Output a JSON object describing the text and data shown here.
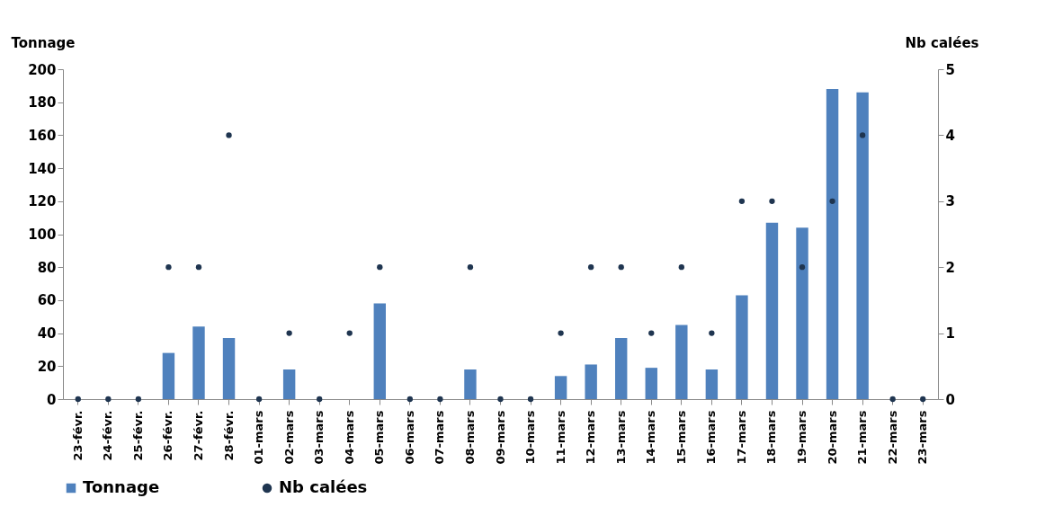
{
  "chart_data": {
    "type": "bar",
    "ylabel": "Tonnage",
    "y2label": "Nb calées",
    "categories": [
      "23-févr.",
      "24-févr.",
      "25-févr.",
      "26-févr.",
      "27-févr.",
      "28-févr.",
      "01-mars",
      "02-mars",
      "03-mars",
      "04-mars",
      "05-mars",
      "06-mars",
      "07-mars",
      "08-mars",
      "09-mars",
      "10-mars",
      "11-mars",
      "12-mars",
      "13-mars",
      "14-mars",
      "15-mars",
      "16-mars",
      "17-mars",
      "18-mars",
      "19-mars",
      "20-mars",
      "21-mars",
      "22-mars",
      "23-mars"
    ],
    "series": [
      {
        "name": "Tonnage",
        "color": "#4f81bd",
        "values": [
          0,
          0,
          0,
          28,
          44,
          37,
          0,
          18,
          0,
          0,
          58,
          0,
          0,
          18,
          0,
          0,
          14,
          21,
          37,
          19,
          45,
          18,
          63,
          107,
          104,
          188,
          186,
          0,
          0
        ]
      },
      {
        "name": "Nb calées",
        "type": "scatter",
        "axis": "y2",
        "color": "#1f3550",
        "values": [
          0,
          0,
          0,
          2,
          2,
          4,
          0,
          1,
          0,
          1,
          2,
          0,
          0,
          2,
          0,
          0,
          1,
          2,
          2,
          1,
          2,
          1,
          3,
          3,
          2,
          3,
          4,
          0,
          0
        ]
      }
    ],
    "ylim": [
      0,
      200
    ],
    "yticks": [
      0,
      20,
      40,
      60,
      80,
      100,
      120,
      140,
      160,
      180,
      200
    ],
    "y2lim": [
      0,
      5
    ],
    "y2ticks": [
      0,
      1,
      2,
      3,
      4,
      5
    ],
    "grid": false,
    "legend": "bottom",
    "marker": "circle"
  }
}
